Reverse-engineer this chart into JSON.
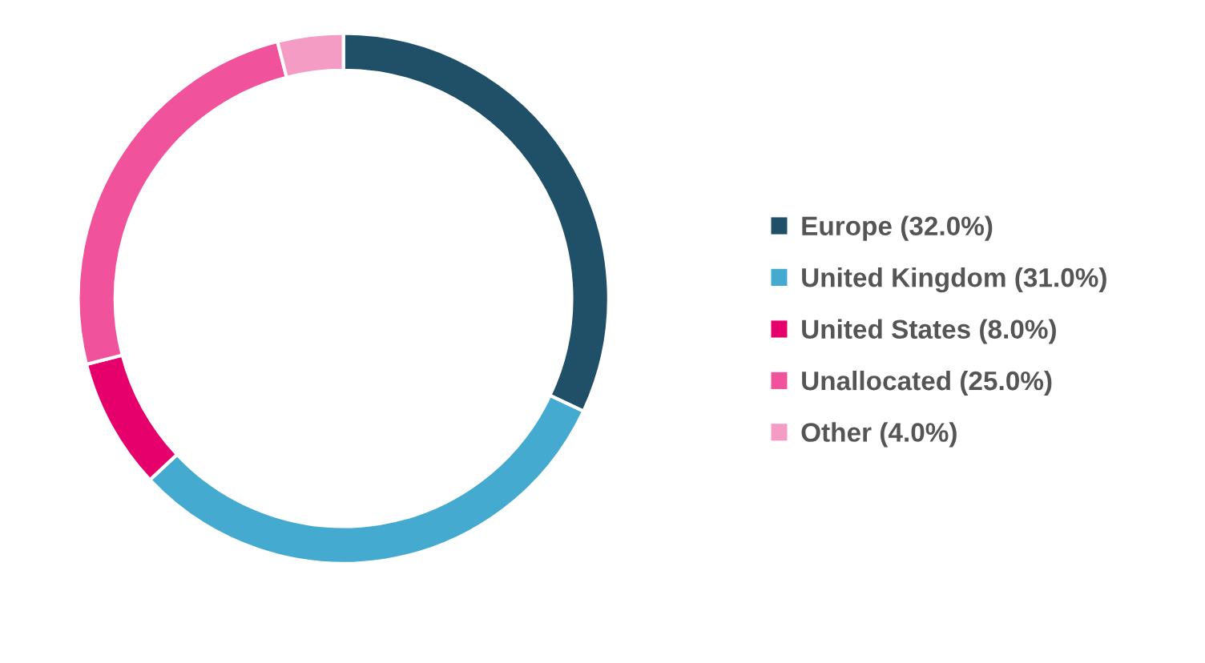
{
  "chart_data": {
    "type": "donut",
    "categories": [
      "Europe (32.0%)",
      "United Kingdom (31.0%)",
      "United States (8.0%)",
      "Unallocated (25.0%)",
      "Other (4.0%)"
    ],
    "values": [
      32,
      31,
      8,
      25,
      4
    ],
    "colors": [
      "#1f5068",
      "#45aacf",
      "#e6006b",
      "#f0529b",
      "#f59cc4"
    ],
    "legend": "right"
  }
}
